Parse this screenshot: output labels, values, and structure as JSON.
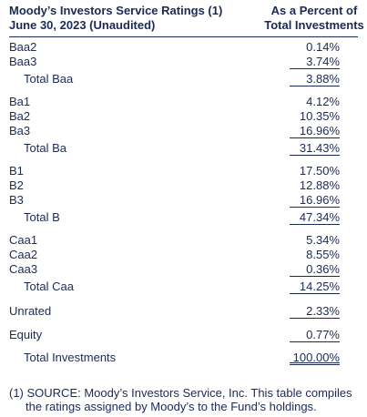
{
  "header": {
    "title": [
      "Moody’s Investors Service Ratings (1)",
      "June 30, 2023 (Unaudited)"
    ],
    "column": [
      "As a Percent of",
      "Total Investments"
    ]
  },
  "groups": [
    {
      "rows": [
        [
          "Baa2",
          "0.14%"
        ],
        [
          "Baa3",
          "3.74%"
        ]
      ],
      "total": [
        "Total Baa",
        "3.88%"
      ]
    },
    {
      "rows": [
        [
          "Ba1",
          "4.12%"
        ],
        [
          "Ba2",
          "10.35%"
        ],
        [
          "Ba3",
          "16.96%"
        ]
      ],
      "total": [
        "Total Ba",
        "31.43%"
      ]
    },
    {
      "rows": [
        [
          "B1",
          "17.50%"
        ],
        [
          "B2",
          "12.88%"
        ],
        [
          "B3",
          "16.96%"
        ]
      ],
      "total": [
        "Total B",
        "47.34%"
      ]
    },
    {
      "rows": [
        [
          "Caa1",
          "5.34%"
        ],
        [
          "Caa2",
          "8.55%"
        ],
        [
          "Caa3",
          "0.36%"
        ]
      ],
      "total": [
        "Total Caa",
        "14.25%"
      ]
    }
  ],
  "other": [
    [
      "Unrated",
      "2.33%"
    ],
    [
      "Equity",
      "0.77%"
    ]
  ],
  "total": [
    "Total Investments",
    "100.00%"
  ],
  "footnote": "(1) SOURCE: Moody’s Investors Service, Inc. This table compiles the ratings assigned by Moody’s to the Fund’s holdings."
}
